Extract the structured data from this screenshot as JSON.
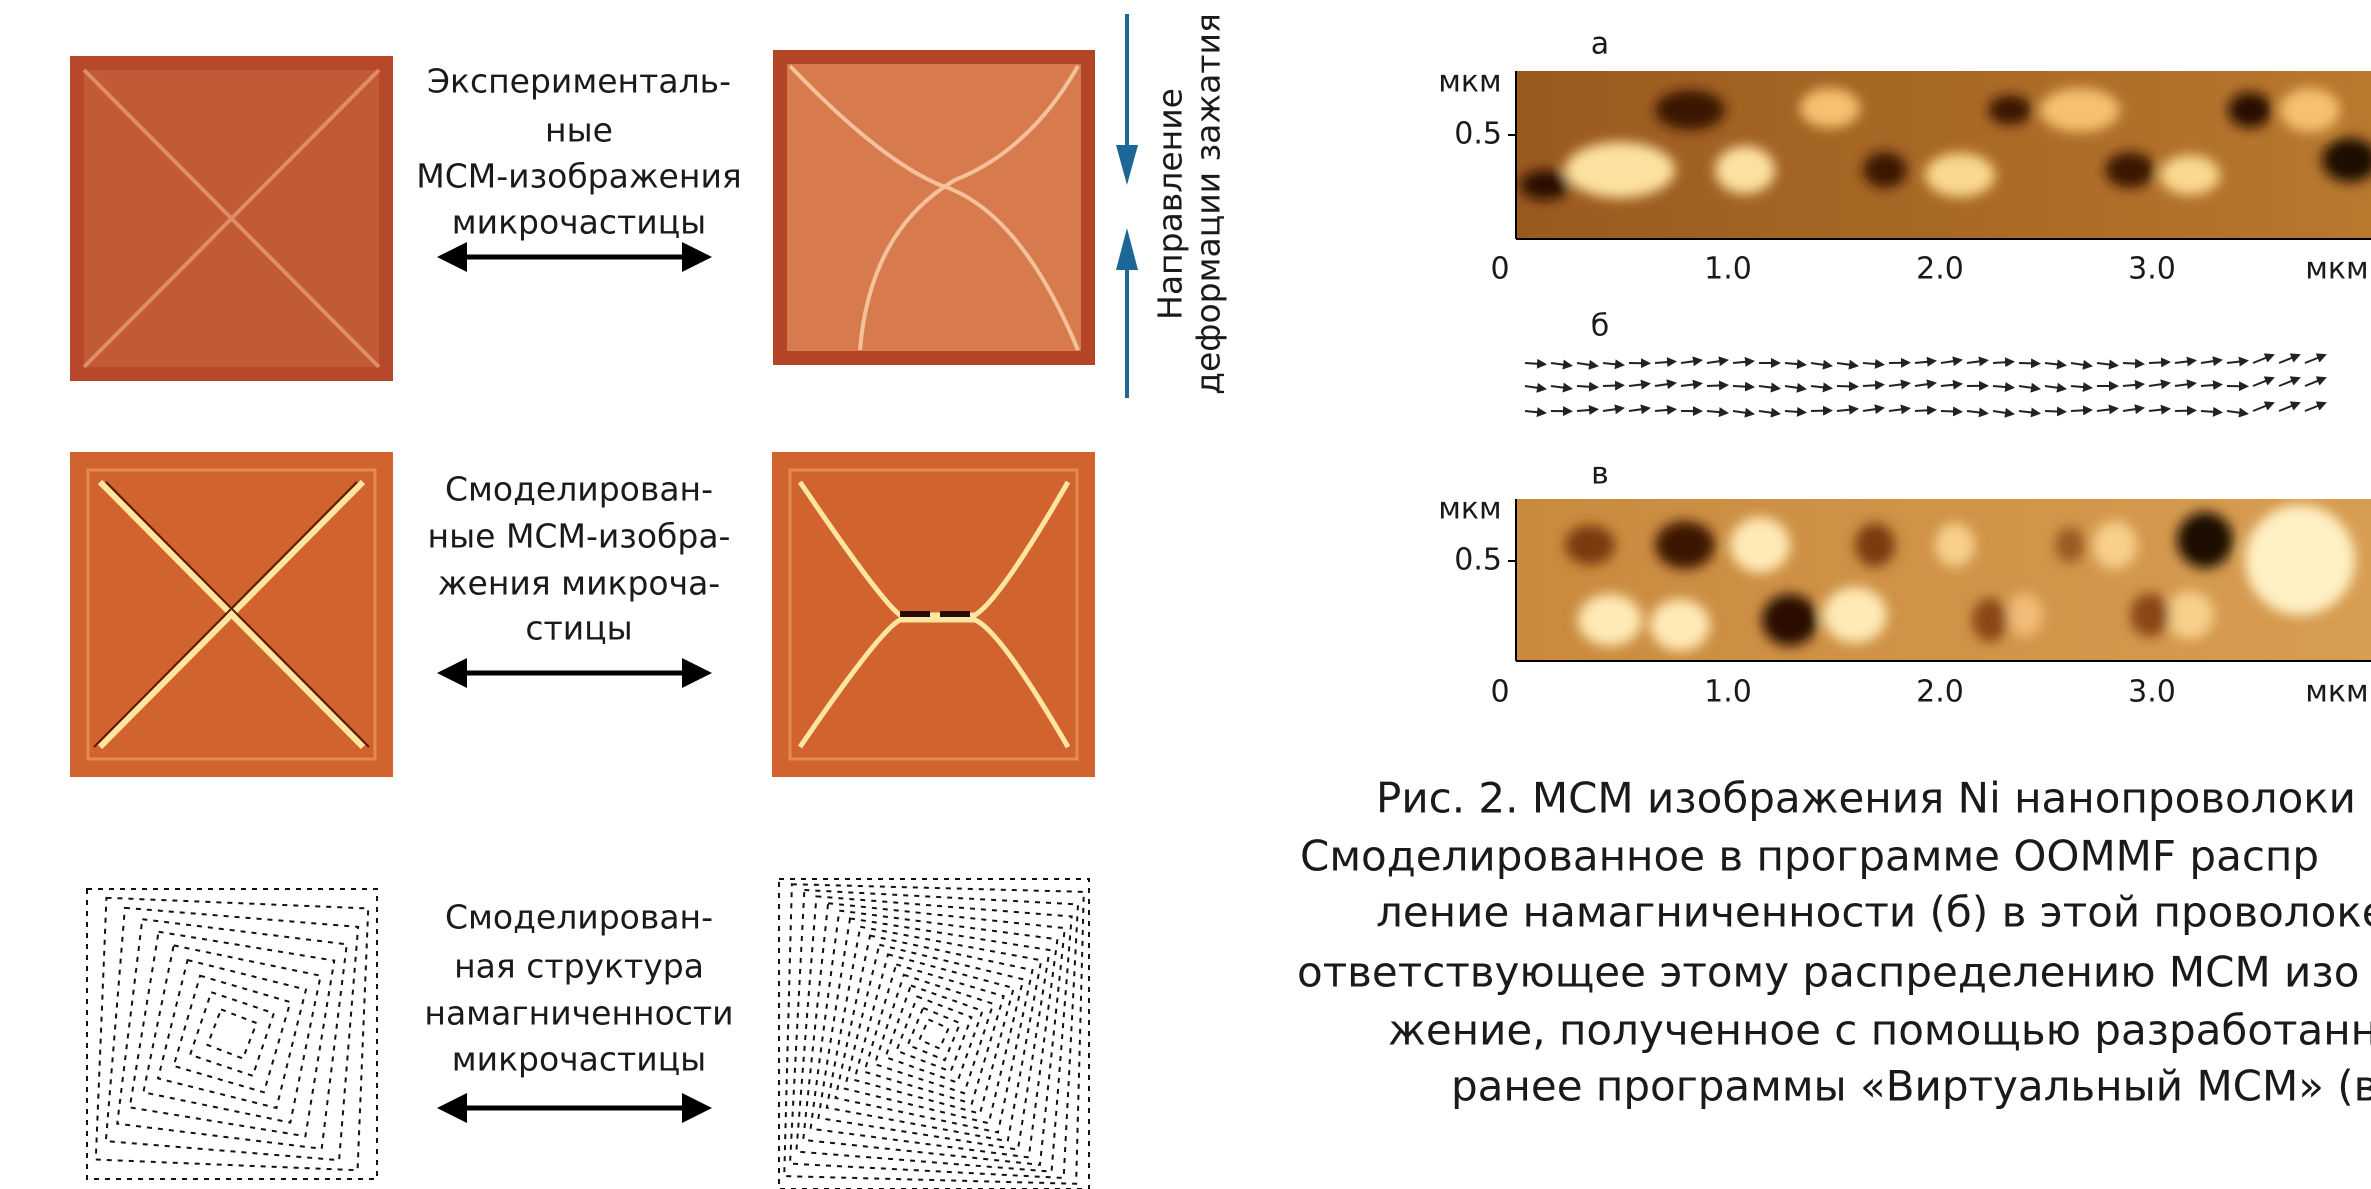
{
  "panels": {
    "experimental": [
      "Эксперименталь-",
      "ные",
      "МСМ-изображения",
      "микрочастицы"
    ],
    "simulated_mfm": [
      "Смоделирован-",
      "ные МСМ-изобра-",
      "жения микроча-",
      "стицы"
    ],
    "simulated_structure": [
      "Смоделирован-",
      "ная структура",
      "намагниченности",
      "микрочастицы"
    ]
  },
  "deformation_label": [
    "Направление",
    "деформации зажатия"
  ],
  "figure": {
    "a": {
      "label": "а",
      "y_unit": "мкм",
      "y_tick": "0.5",
      "x_ticks": [
        "0",
        "1.0",
        "2.0",
        "3.0"
      ],
      "x_unit": "мкм"
    },
    "b": {
      "label": "б"
    },
    "c": {
      "label": "в",
      "y_unit": "мкм",
      "y_tick": "0.5",
      "x_ticks": [
        "0",
        "1.0",
        "2.0",
        "3.0"
      ],
      "x_unit": "мкм"
    }
  },
  "caption": [
    "Рис. 2. МСМ изображения Ni нанопроволоки",
    "Смоделированное в программе OOMMF распр",
    "ление намагниченности (б) в этой проволоке",
    "ответствующее этому распределению МСМ изо",
    "жение, полученное с помощью разработанн",
    "ранее программы «Виртуальный МСМ» (в)"
  ]
}
